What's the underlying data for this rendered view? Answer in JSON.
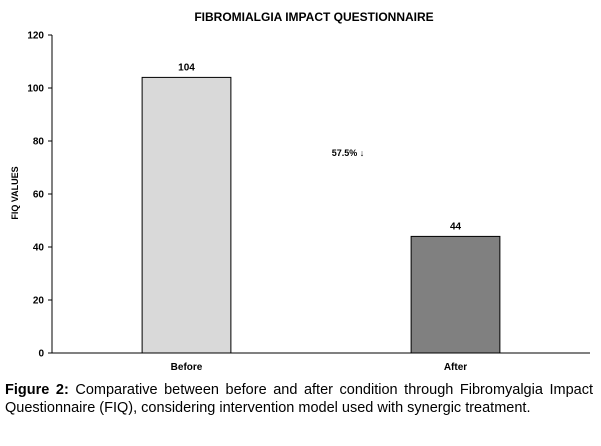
{
  "chart_data": {
    "type": "bar",
    "title": "FIBROMIALGIA IMPACT QUESTIONNAIRE",
    "xlabel": "",
    "ylabel": "FIQ VALUES",
    "categories": [
      "Before",
      "After"
    ],
    "values": [
      104,
      44
    ],
    "data_labels": [
      "104",
      "44"
    ],
    "ylim": [
      0,
      120
    ],
    "yticks": [
      0,
      20,
      40,
      60,
      80,
      100,
      120
    ],
    "bar_colors": [
      "#d9d9d9",
      "#808080"
    ],
    "annotation": "57.5% ↓",
    "grid": false,
    "legend": "none"
  },
  "caption": {
    "label": "Figure 2:",
    "text": " Comparative between before and after condition through Fibromyalgia Impact Questionnaire (FIQ), considering intervention model used with synergic treatment."
  }
}
